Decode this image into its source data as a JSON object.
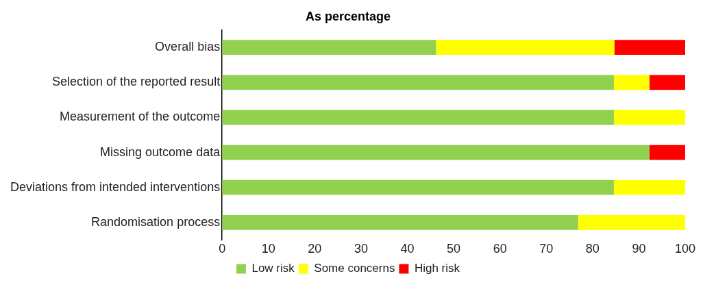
{
  "chart_data": {
    "type": "bar",
    "orientation": "horizontal",
    "stacked": true,
    "title": "As percentage",
    "categories": [
      "Overall bias",
      "Selection of the reported result",
      "Measurement of the outcome",
      "Missing outcome data",
      "Deviations from intended interventions",
      "Randomisation process"
    ],
    "series": [
      {
        "name": "Low risk",
        "color": "#92d050",
        "values": [
          46.2,
          84.6,
          84.6,
          92.3,
          84.6,
          76.9
        ]
      },
      {
        "name": "Some concerns",
        "color": "#ffff00",
        "values": [
          38.5,
          7.7,
          15.4,
          0,
          15.4,
          23.1
        ]
      },
      {
        "name": "High risk",
        "color": "#ff0000",
        "values": [
          15.4,
          7.7,
          0,
          7.7,
          0,
          0
        ]
      }
    ],
    "xlim": [
      0,
      100
    ],
    "xticks": [
      0,
      10,
      20,
      30,
      40,
      50,
      60,
      70,
      80,
      90,
      100
    ],
    "grid": false,
    "legend": "bottom"
  }
}
